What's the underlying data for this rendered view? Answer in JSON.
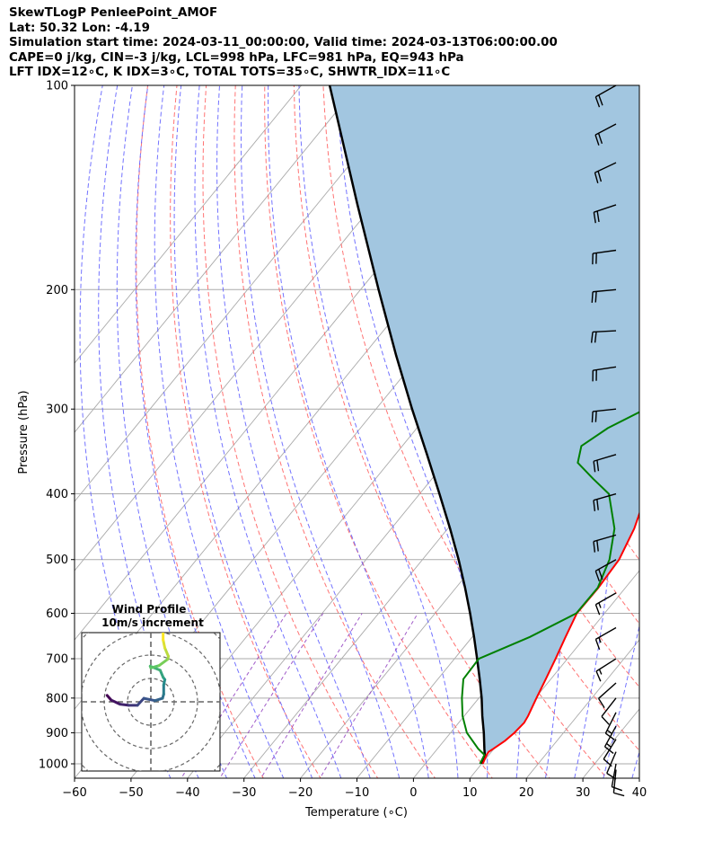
{
  "header": {
    "title": "SkewTLogP PenleePoint_AMOF",
    "location": "Lat: 50.32   Lon: -4.19",
    "times": "Simulation start time: 2024-03-11_00:00:00, Valid time: 2024-03-13T06:00:00.00",
    "indices_1": "CAPE=0 j/kg, CIN=-3 j/kg, LCL=998 hPa, LFC=981 hPa, EQ=943 hPa",
    "indices_2": "LFT IDX=12∘C, K IDX=3∘C, TOTAL TOTS=35∘C, SHWTR_IDX=11∘C"
  },
  "chart_data": {
    "type": "line",
    "chart_kind": "skew-T log-P",
    "xlabel": "Temperature (∘C)",
    "ylabel": "Pressure (hPa)",
    "xlim": [
      -60,
      40
    ],
    "ylim": [
      1050,
      100
    ],
    "y_scale": "log",
    "x_ticks": [
      "−60",
      "−50",
      "−40",
      "−30",
      "−20",
      "−10",
      "0",
      "10",
      "20",
      "30",
      "40"
    ],
    "y_ticks": [
      "100",
      "200",
      "300",
      "400",
      "500",
      "600",
      "700",
      "800",
      "900",
      "1000"
    ],
    "grid": true,
    "colors": {
      "temperature": "#ff0000",
      "dewpoint": "#008000",
      "parcel": "#000000",
      "shade": "#a2c6e0",
      "dry_adiabat": "#ff5a5a",
      "moist_adiabat": "#5a5aff",
      "mixing_ratio": "#9040c0",
      "isotherm": "#aaaaaa",
      "wind_barb": "#000000"
    },
    "series": [
      {
        "key": "temperature",
        "pressure": [
          1000,
          970,
          960,
          950,
          925,
          900,
          870,
          850,
          800,
          750,
          700,
          650,
          600,
          550,
          500,
          450,
          400,
          350,
          300,
          250,
          220,
          200,
          180,
          160,
          150,
          140,
          130,
          120,
          110,
          100
        ],
        "temperature": [
          10.2,
          9.6,
          9.5,
          9.9,
          10.8,
          11.3,
          11.6,
          11.3,
          10.2,
          9.1,
          7.9,
          6.5,
          5.1,
          5.2,
          4.8,
          3.0,
          0.1,
          -4.0,
          -8.8,
          -13.3,
          -15.6,
          -16.3,
          -15.7,
          -13.3,
          -10.6,
          -7.0,
          -2.1,
          1.3,
          3.3,
          4.0
        ]
      },
      {
        "key": "dewpoint",
        "pressure": [
          1000,
          970,
          950,
          900,
          850,
          800,
          750,
          700,
          650,
          600,
          550,
          500,
          450,
          400,
          380,
          360,
          340,
          320,
          300,
          280,
          260,
          240,
          220,
          200,
          180,
          160,
          150,
          140,
          130,
          120,
          110,
          100
        ],
        "temperature": [
          9.7,
          9.2,
          7.2,
          2.9,
          -0.3,
          -3.0,
          -5.5,
          -5.7,
          0.2,
          5.0,
          5.1,
          3.1,
          -0.5,
          -6.5,
          -11.5,
          -16.5,
          -18.3,
          -16.2,
          -12.3,
          -11.6,
          -13.5,
          -16.0,
          -18.3,
          -18.1,
          -17.2,
          -15.6,
          -14.6,
          -13.9,
          -14.6,
          -13.4,
          -10.8,
          -7.5
        ]
      },
      {
        "key": "parcel",
        "pressure": [
          1000,
          975,
          950,
          900,
          850,
          800,
          750,
          700,
          650,
          600,
          550,
          500,
          450,
          400,
          350,
          300,
          250,
          200,
          150,
          100
        ],
        "temperature": [
          10.0,
          9.5,
          8.3,
          5.9,
          3.2,
          0.5,
          -2.6,
          -6.0,
          -9.7,
          -13.8,
          -18.4,
          -23.6,
          -29.6,
          -36.5,
          -44.4,
          -53.6,
          -64.2,
          -76.8,
          -92.8,
          -115.0
        ]
      }
    ],
    "wind_barbs": {
      "pressure": [
        100,
        114,
        130,
        150,
        175,
        200,
        230,
        260,
        300,
        350,
        400,
        460,
        500,
        560,
        630,
        700,
        760,
        800,
        840,
        880,
        920,
        960,
        1000,
        1020
      ],
      "u_kt": [
        -16,
        -17,
        -17,
        -18,
        -22,
        -21,
        -20,
        -20,
        -19,
        -20,
        -21,
        -21,
        -18,
        -14,
        -14,
        -11,
        -9,
        -7,
        -6,
        -6,
        -5,
        -3,
        -2,
        -1
      ],
      "v_kt": [
        -9,
        -9,
        -8,
        -6,
        -3,
        -2,
        -1,
        -3,
        -2,
        -6,
        -6,
        -6,
        -10,
        -8,
        -8,
        -7,
        -8,
        -9,
        -12,
        -11,
        -8,
        -7,
        -11,
        -10
      ]
    },
    "hodograph": {
      "title": "Wind Profile",
      "subtitle": "10m/s increment",
      "colormap": "viridis",
      "u_ms": [
        -7.5,
        -6.8,
        -5.3,
        -3.8,
        -2.3,
        -1.2,
        0.7,
        2.0,
        2.2,
        2.2,
        2.4,
        2.1,
        1.6,
        -0.1,
        0.0,
        1.4,
        2.9,
        3.0,
        2.4,
        2.1,
        2.1
      ],
      "v_ms": [
        -1.1,
        -0.3,
        0.4,
        0.6,
        0.6,
        -0.6,
        -0.2,
        -0.6,
        -1.3,
        -2.9,
        -3.8,
        -4.2,
        -5.4,
        -6.1,
        -5.8,
        -6.2,
        -7.3,
        -7.8,
        -9.2,
        -10.6,
        -12.4
      ]
    }
  }
}
